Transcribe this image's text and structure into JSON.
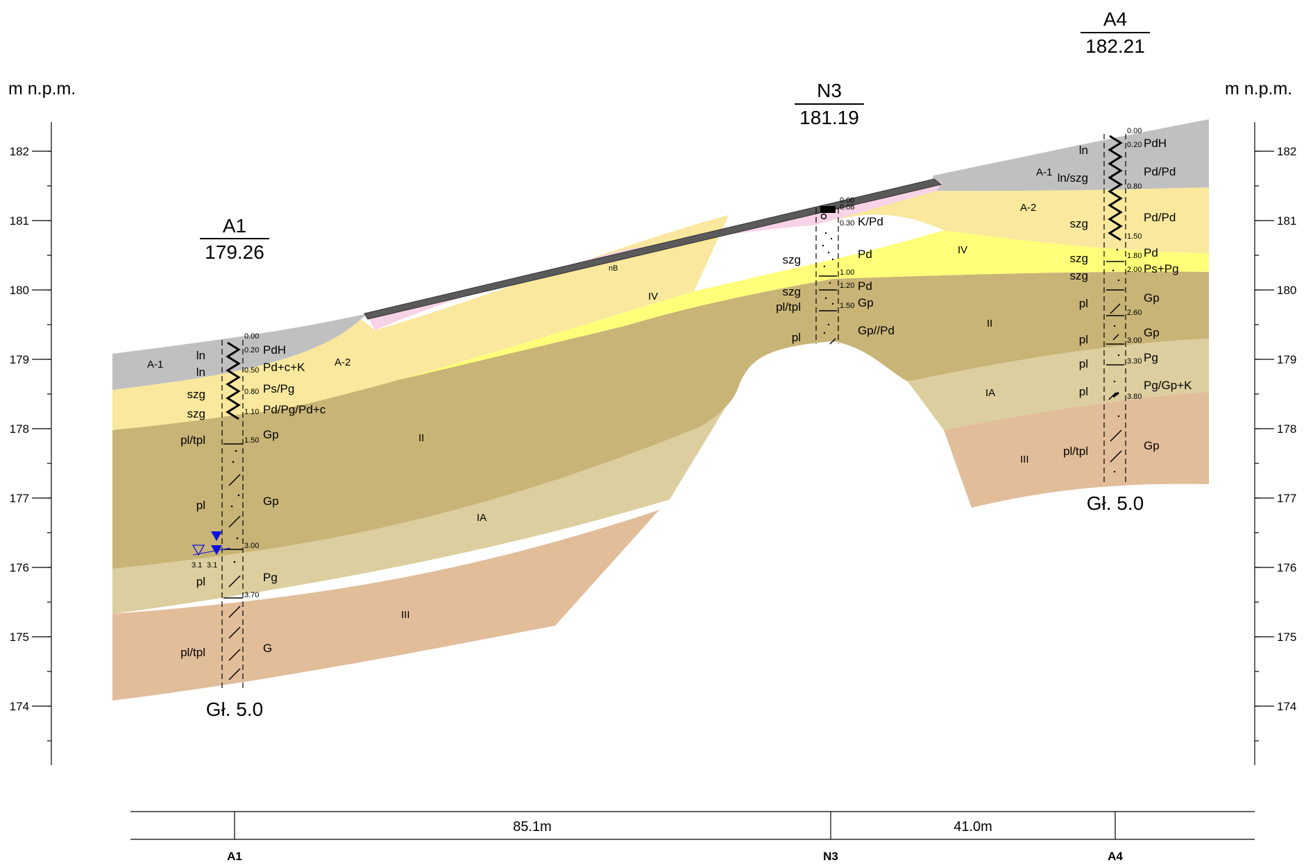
{
  "units": {
    "left": "m n.p.m.",
    "right": "m n.p.m."
  },
  "elevation_ticks": [
    "182",
    "181",
    "180",
    "179",
    "178",
    "177",
    "176",
    "175",
    "174"
  ],
  "boreholes": [
    {
      "id": "A1",
      "elevation": "179.26",
      "depth_label": "Gł. 5.0",
      "depths": [
        "0.00",
        "0.20",
        "0.50",
        "0.80",
        "1.10",
        "1.50",
        "3.00",
        "3.70"
      ],
      "soils": [
        "PdH",
        "Pd+c+K",
        "Ps/Pg",
        "Pd/Pg/Pd+c",
        "Gp",
        "Gp",
        "Pg",
        "G"
      ],
      "states": [
        "ln",
        "ln",
        "szg",
        "szg",
        "pl/tpl",
        "pl",
        "pl",
        "pl/tpl"
      ],
      "water": {
        "first": "3.1",
        "second": "3.1"
      }
    },
    {
      "id": "N3",
      "elevation": "181.19",
      "depth_label": "",
      "depths": [
        "0.00",
        "0.08",
        "0.30",
        "1.00",
        "1.20",
        "1.50"
      ],
      "soils": [
        "K/Pd",
        "Pd",
        "Pd",
        "Gp",
        "Gp//Pd"
      ],
      "states": [
        "szg",
        "szg",
        "pl/tpl",
        "pl"
      ]
    },
    {
      "id": "A4",
      "elevation": "182.21",
      "depth_label": "Gł. 5.0",
      "depths": [
        "0.00",
        "0.20",
        "0.80",
        "1.50",
        "1.80",
        "2.00",
        "2.60",
        "3.00",
        "3.30",
        "3.80"
      ],
      "soils": [
        "PdH",
        "Pd/Pd",
        "Pd/Pd",
        "Pd",
        "Ps+Pg",
        "Gp",
        "Gp",
        "Pg",
        "Pg/Gp+K",
        "Gp"
      ],
      "states": [
        "ln",
        "ln/szg",
        "szg",
        "szg",
        "szg",
        "pl",
        "pl",
        "pl",
        "pl",
        "pl/tpl"
      ]
    }
  ],
  "zones": {
    "a1": "A-1",
    "a2": "A-2",
    "nb": "nB",
    "iv": "IV",
    "ii": "II",
    "ia": "IA",
    "iii": "III"
  },
  "distances": [
    "85.1m",
    "41.0m"
  ],
  "colors": {
    "A-1": "#c0c0c0",
    "A-2": "#f9e89d",
    "IV": "#ffff79",
    "II": "#c8b476",
    "IA": "#dcce9e",
    "III": "#e2bd9a",
    "nB": "#f8d2e6",
    "asphalt": "#5a5a5a",
    "water": "#1010e0"
  }
}
